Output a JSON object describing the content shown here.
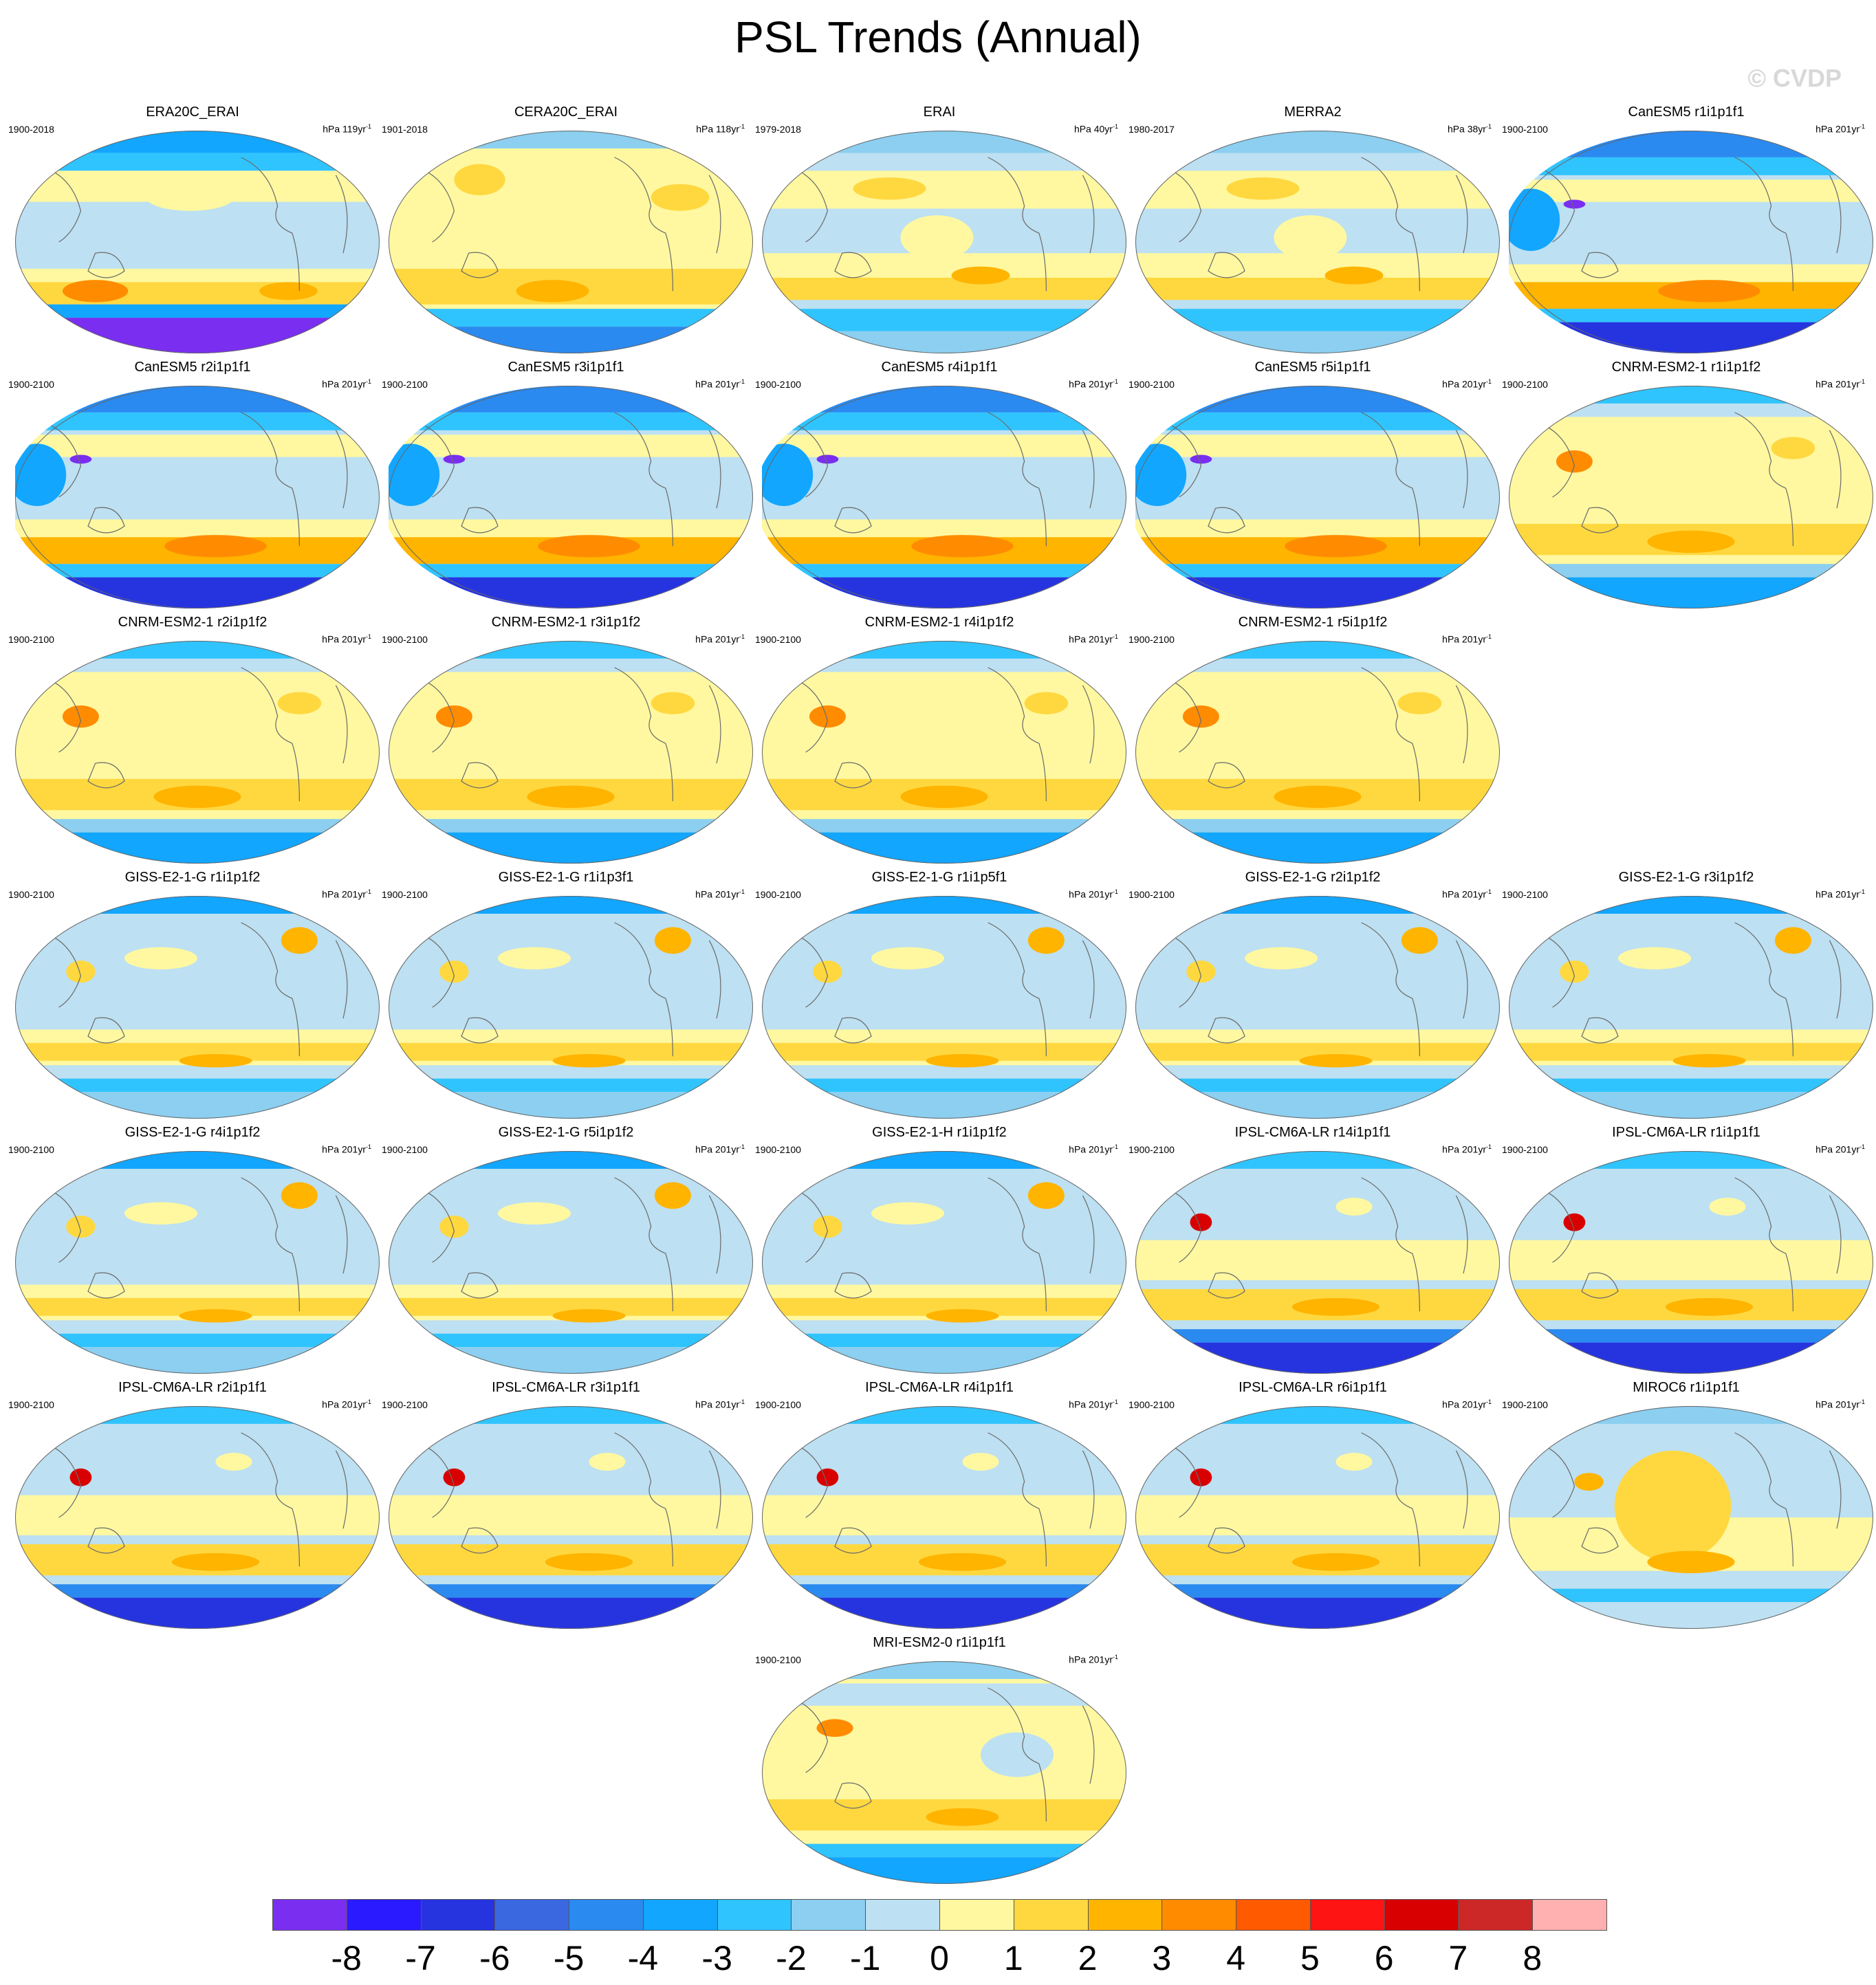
{
  "title": "PSL Trends (Annual)",
  "watermark": "© CVDP",
  "chart_data": {
    "type": "heatmap",
    "projection": "Robinson, Pacific-centered",
    "panels": [
      {
        "title": "ERA20C_ERAI",
        "period": "1900-2018",
        "units": "hPa 119yr",
        "units_exp": "-1",
        "pattern": "reanalysis-mixed"
      },
      {
        "title": "CERA20C_ERAI",
        "period": "1901-2018",
        "units": "hPa 118yr",
        "units_exp": "-1",
        "pattern": "warm-broad"
      },
      {
        "title": "ERAI",
        "period": "1979-2018",
        "units": "hPa 40yr",
        "units_exp": "-1",
        "pattern": "weak-mixed"
      },
      {
        "title": "MERRA2",
        "period": "1980-2017",
        "units": "hPa 38yr",
        "units_exp": "-1",
        "pattern": "weak-mixed"
      },
      {
        "title": "CanESM5 r1i1p1f1",
        "period": "1900-2100",
        "units": "hPa 201yr",
        "units_exp": "-1",
        "pattern": "canesm"
      },
      {
        "title": "CanESM5 r2i1p1f1",
        "period": "1900-2100",
        "units": "hPa 201yr",
        "units_exp": "-1",
        "pattern": "canesm"
      },
      {
        "title": "CanESM5 r3i1p1f1",
        "period": "1900-2100",
        "units": "hPa 201yr",
        "units_exp": "-1",
        "pattern": "canesm"
      },
      {
        "title": "CanESM5 r4i1p1f1",
        "period": "1900-2100",
        "units": "hPa 201yr",
        "units_exp": "-1",
        "pattern": "canesm"
      },
      {
        "title": "CanESM5 r5i1p1f1",
        "period": "1900-2100",
        "units": "hPa 201yr",
        "units_exp": "-1",
        "pattern": "canesm"
      },
      {
        "title": "CNRM-ESM2-1 r1i1p1f2",
        "period": "1900-2100",
        "units": "hPa 201yr",
        "units_exp": "-1",
        "pattern": "cnrm"
      },
      {
        "title": "CNRM-ESM2-1 r2i1p1f2",
        "period": "1900-2100",
        "units": "hPa 201yr",
        "units_exp": "-1",
        "pattern": "cnrm"
      },
      {
        "title": "CNRM-ESM2-1 r3i1p1f2",
        "period": "1900-2100",
        "units": "hPa 201yr",
        "units_exp": "-1",
        "pattern": "cnrm"
      },
      {
        "title": "CNRM-ESM2-1 r4i1p1f2",
        "period": "1900-2100",
        "units": "hPa 201yr",
        "units_exp": "-1",
        "pattern": "cnrm"
      },
      {
        "title": "CNRM-ESM2-1 r5i1p1f2",
        "period": "1900-2100",
        "units": "hPa 201yr",
        "units_exp": "-1",
        "pattern": "cnrm"
      },
      {
        "title": "GISS-E2-1-G r1i1p1f2",
        "period": "1900-2100",
        "units": "hPa 201yr",
        "units_exp": "-1",
        "pattern": "giss"
      },
      {
        "title": "GISS-E2-1-G r1i1p3f1",
        "period": "1900-2100",
        "units": "hPa 201yr",
        "units_exp": "-1",
        "pattern": "giss"
      },
      {
        "title": "GISS-E2-1-G r1i1p5f1",
        "period": "1900-2100",
        "units": "hPa 201yr",
        "units_exp": "-1",
        "pattern": "giss"
      },
      {
        "title": "GISS-E2-1-G r2i1p1f2",
        "period": "1900-2100",
        "units": "hPa 201yr",
        "units_exp": "-1",
        "pattern": "giss"
      },
      {
        "title": "GISS-E2-1-G r3i1p1f2",
        "period": "1900-2100",
        "units": "hPa 201yr",
        "units_exp": "-1",
        "pattern": "giss"
      },
      {
        "title": "GISS-E2-1-G r4i1p1f2",
        "period": "1900-2100",
        "units": "hPa 201yr",
        "units_exp": "-1",
        "pattern": "giss"
      },
      {
        "title": "GISS-E2-1-G r5i1p1f2",
        "period": "1900-2100",
        "units": "hPa 201yr",
        "units_exp": "-1",
        "pattern": "giss"
      },
      {
        "title": "GISS-E2-1-H r1i1p1f2",
        "period": "1900-2100",
        "units": "hPa 201yr",
        "units_exp": "-1",
        "pattern": "giss"
      },
      {
        "title": "IPSL-CM6A-LR r14i1p1f1",
        "period": "1900-2100",
        "units": "hPa 201yr",
        "units_exp": "-1",
        "pattern": "ipsl"
      },
      {
        "title": "IPSL-CM6A-LR r1i1p1f1",
        "period": "1900-2100",
        "units": "hPa 201yr",
        "units_exp": "-1",
        "pattern": "ipsl"
      },
      {
        "title": "IPSL-CM6A-LR r2i1p1f1",
        "period": "1900-2100",
        "units": "hPa 201yr",
        "units_exp": "-1",
        "pattern": "ipsl"
      },
      {
        "title": "IPSL-CM6A-LR r3i1p1f1",
        "period": "1900-2100",
        "units": "hPa 201yr",
        "units_exp": "-1",
        "pattern": "ipsl"
      },
      {
        "title": "IPSL-CM6A-LR r4i1p1f1",
        "period": "1900-2100",
        "units": "hPa 201yr",
        "units_exp": "-1",
        "pattern": "ipsl"
      },
      {
        "title": "IPSL-CM6A-LR r6i1p1f1",
        "period": "1900-2100",
        "units": "hPa 201yr",
        "units_exp": "-1",
        "pattern": "ipsl"
      },
      {
        "title": "MIROC6 r1i1p1f1",
        "period": "1900-2100",
        "units": "hPa 201yr",
        "units_exp": "-1",
        "pattern": "miroc"
      },
      {
        "title": "MRI-ESM2-0 r1i1p1f1",
        "period": "1900-2100",
        "units": "hPa 201yr",
        "units_exp": "-1",
        "pattern": "mri"
      }
    ],
    "colorbar": {
      "tick_labels": [
        "-8",
        "-7",
        "-6",
        "-5",
        "-4",
        "-3",
        "-2",
        "-1",
        "0",
        "1",
        "2",
        "3",
        "4",
        "5",
        "6",
        "7",
        "8"
      ],
      "colors": [
        "#7a2ef0",
        "#2a1aff",
        "#2634e0",
        "#3a68e0",
        "#2a8af0",
        "#12a6ff",
        "#30c4ff",
        "#8ccff0",
        "#bde0f2",
        "#fff8a0",
        "#ffd840",
        "#ffb400",
        "#ff8c00",
        "#ff5a00",
        "#ff1414",
        "#d80000",
        "#cc2828",
        "#ffb0b0"
      ]
    }
  }
}
